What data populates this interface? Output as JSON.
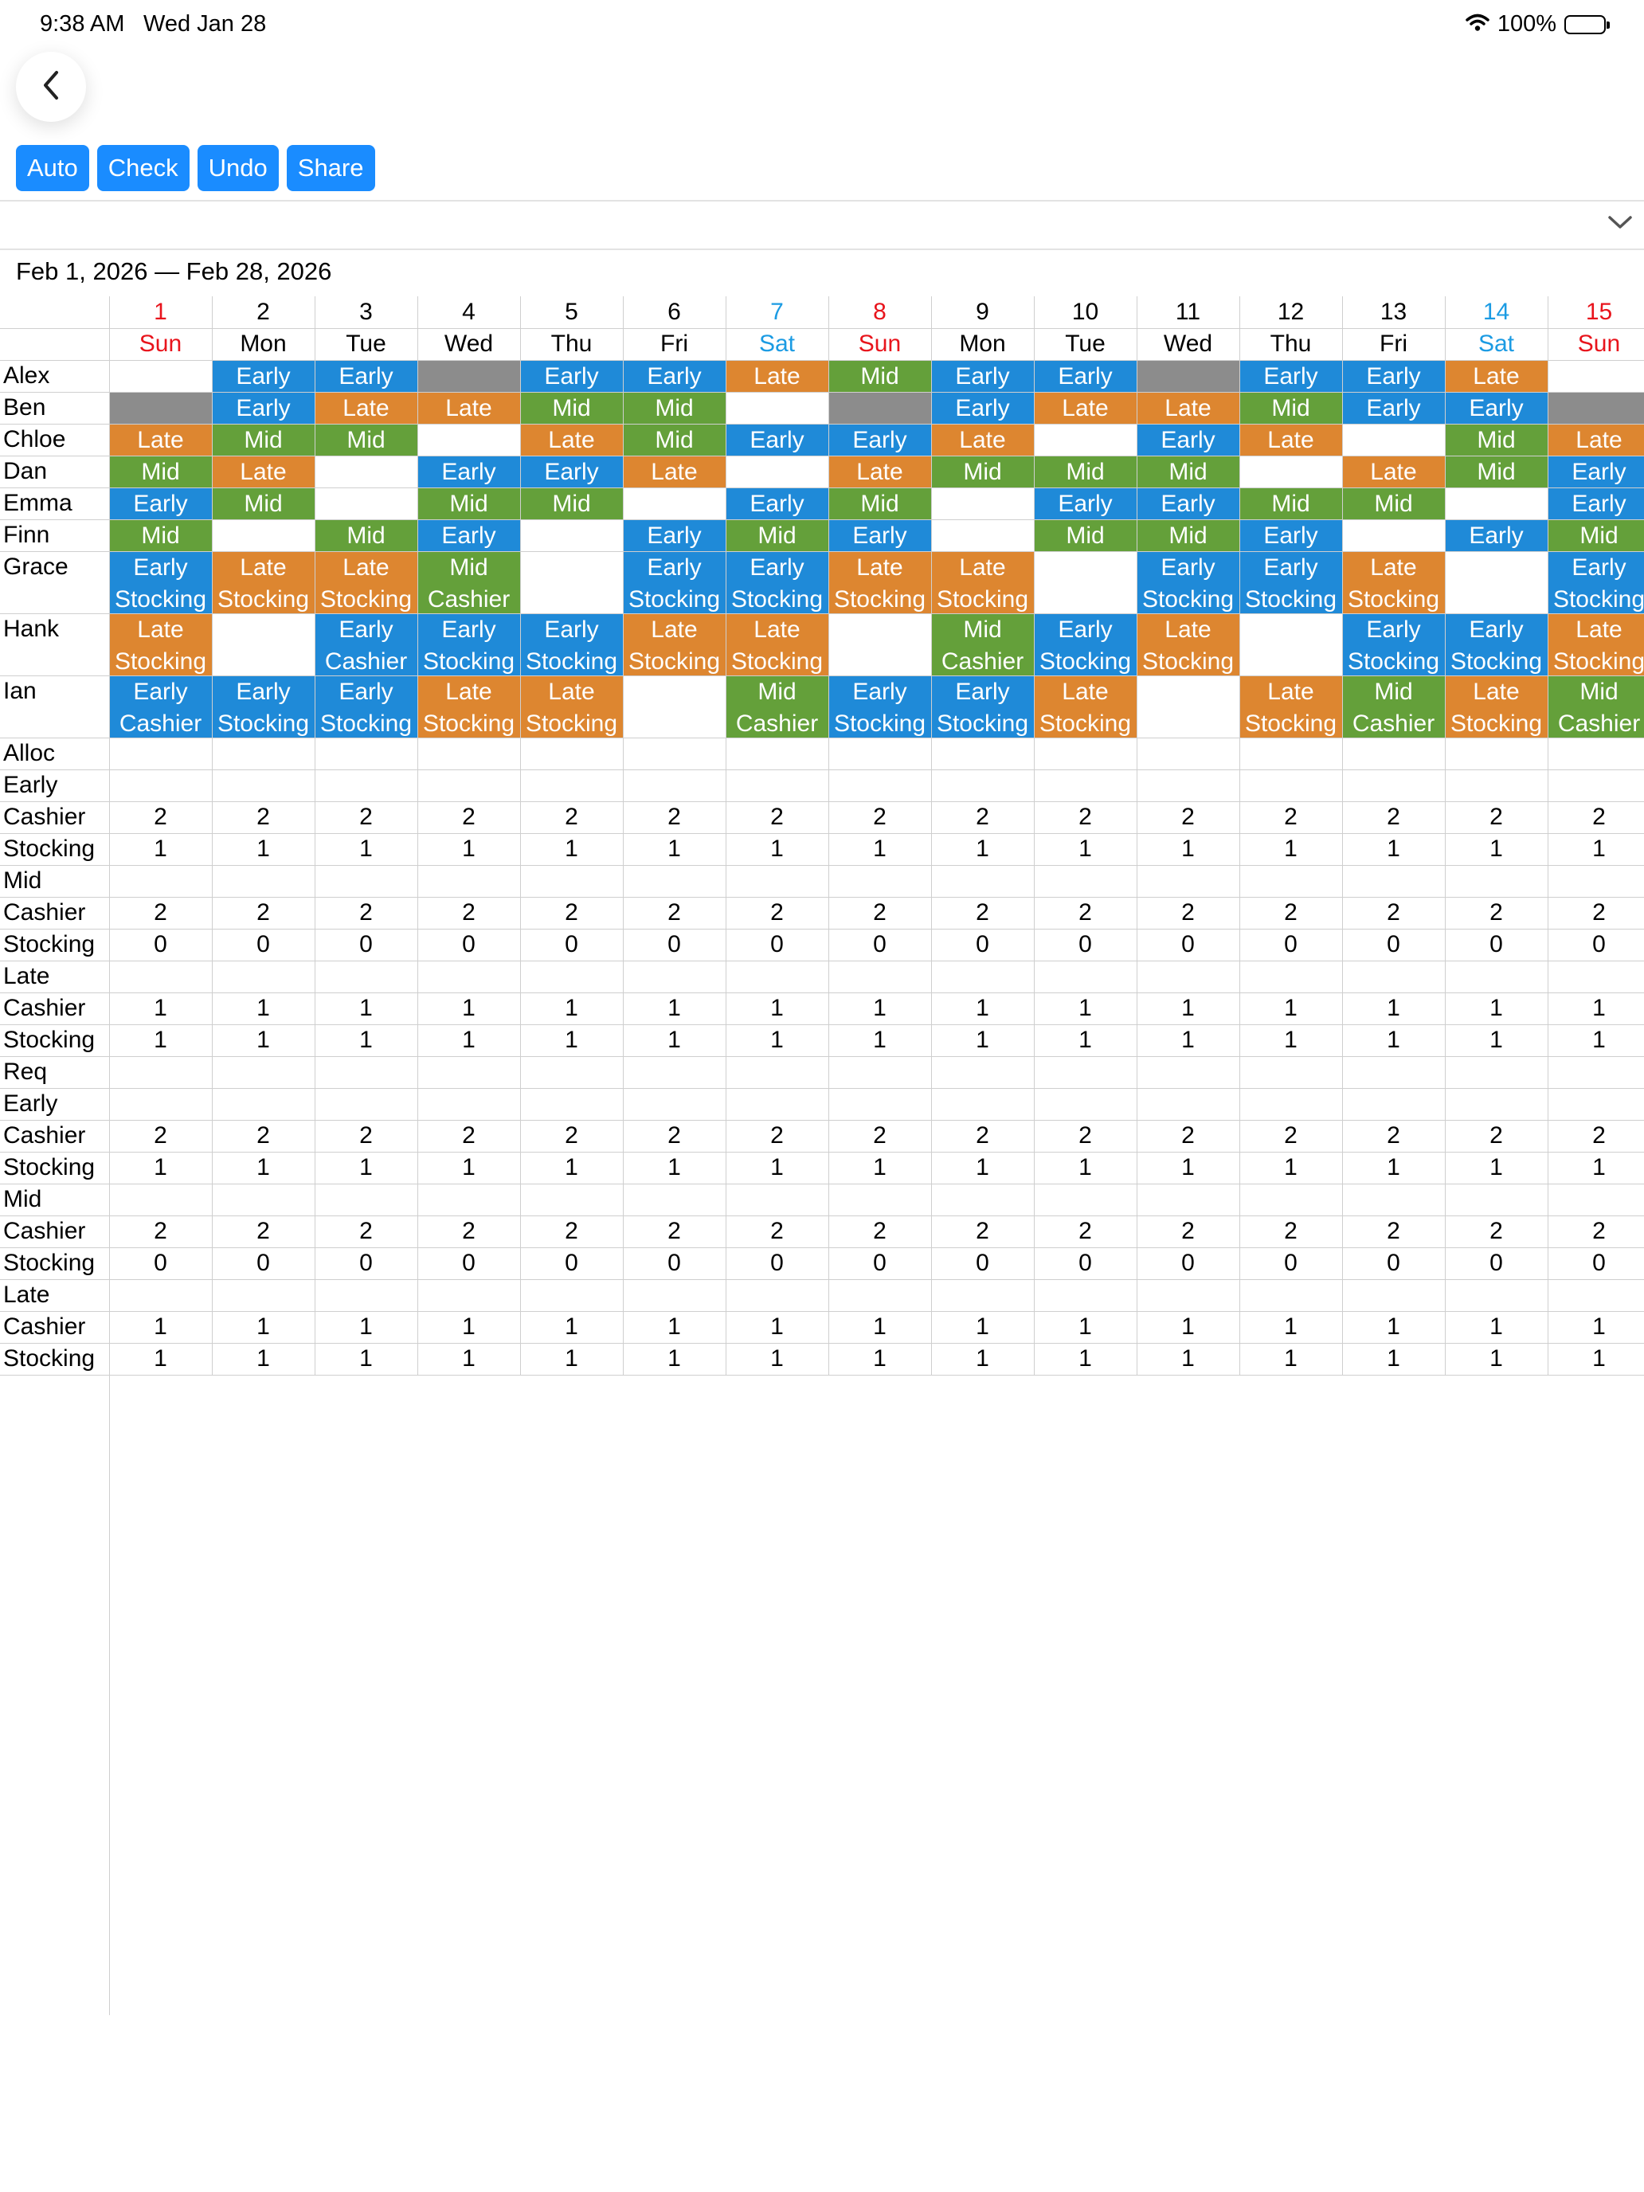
{
  "status_bar": {
    "time": "9:38 AM",
    "date": "Wed Jan 28",
    "battery": "100%"
  },
  "toolbar": {
    "auto": "Auto",
    "check": "Check",
    "undo": "Undo",
    "share": "Share"
  },
  "date_range": "Feb 1, 2026 — Feb 28, 2026",
  "colors": {
    "Early": "#1f8ad8",
    "Mid": "#64a03a",
    "Late": "#dd8630",
    "Off": "#8c8c8c",
    "sunday": "#e8141c",
    "saturday": "#1b9be3",
    "button": "#1a8cff"
  },
  "days": [
    {
      "num": "1",
      "dow": "Sun"
    },
    {
      "num": "2",
      "dow": "Mon"
    },
    {
      "num": "3",
      "dow": "Tue"
    },
    {
      "num": "4",
      "dow": "Wed"
    },
    {
      "num": "5",
      "dow": "Thu"
    },
    {
      "num": "6",
      "dow": "Fri"
    },
    {
      "num": "7",
      "dow": "Sat"
    },
    {
      "num": "8",
      "dow": "Sun"
    },
    {
      "num": "9",
      "dow": "Mon"
    },
    {
      "num": "10",
      "dow": "Tue"
    },
    {
      "num": "11",
      "dow": "Wed"
    },
    {
      "num": "12",
      "dow": "Thu"
    },
    {
      "num": "13",
      "dow": "Fri"
    },
    {
      "num": "14",
      "dow": "Sat"
    },
    {
      "num": "15",
      "dow": "Sun"
    }
  ],
  "staff": [
    {
      "name": "Alex",
      "cells": [
        "",
        "Early",
        "Early",
        "OFF",
        "Early",
        "Early",
        "Late",
        "Mid",
        "Early",
        "Early",
        "OFF",
        "Early",
        "Early",
        "Late",
        ""
      ]
    },
    {
      "name": "Ben",
      "cells": [
        "OFF",
        "Early",
        "Late",
        "Late",
        "Mid",
        "Mid",
        "",
        "OFF",
        "Early",
        "Late",
        "Late",
        "Mid",
        "Early",
        "Early",
        "OFF"
      ]
    },
    {
      "name": "Chloe",
      "cells": [
        "Late",
        "Mid",
        "Mid",
        "",
        "Late",
        "Mid",
        "Early",
        "Early",
        "Late",
        "",
        "Early",
        "Late",
        "",
        "Mid",
        "Late"
      ]
    },
    {
      "name": "Dan",
      "cells": [
        "Mid",
        "Late",
        "",
        "Early",
        "Early",
        "Late",
        "",
        "Late",
        "Mid",
        "Mid",
        "Mid",
        "",
        "Late",
        "Mid",
        "Early"
      ]
    },
    {
      "name": "Emma",
      "cells": [
        "Early",
        "Mid",
        "",
        "Mid",
        "Mid",
        "",
        "Early",
        "Mid",
        "",
        "Early",
        "Early",
        "Mid",
        "Mid",
        "",
        "Early"
      ]
    },
    {
      "name": "Finn",
      "cells": [
        "Mid",
        "",
        "Mid",
        "Early",
        "",
        "Early",
        "Mid",
        "Early",
        "",
        "Mid",
        "Mid",
        "Early",
        "",
        "Early",
        "Mid"
      ]
    },
    {
      "name": "Grace",
      "cells": [
        "Early|Stocking",
        "Late|Stocking",
        "Late|Stocking",
        "Mid|Cashier",
        "",
        "Early|Stocking",
        "Early|Stocking",
        "Late|Stocking",
        "Late|Stocking",
        "",
        "Early|Stocking",
        "Early|Stocking",
        "Late|Stocking",
        "",
        "Early|Stocking"
      ]
    },
    {
      "name": "Hank",
      "cells": [
        "Late|Stocking",
        "",
        "Early|Cashier",
        "Early|Stocking",
        "Early|Stocking",
        "Late|Stocking",
        "Late|Stocking",
        "",
        "Mid|Cashier",
        "Early|Stocking",
        "Late|Stocking",
        "",
        "Early|Stocking",
        "Early|Stocking",
        "Late|Stocking"
      ]
    },
    {
      "name": "Ian",
      "cells": [
        "Early|Cashier",
        "Early|Stocking",
        "Early|Stocking",
        "Late|Stocking",
        "Late|Stocking",
        "",
        "Mid|Cashier",
        "Early|Stocking",
        "Early|Stocking",
        "Late|Stocking",
        "",
        "Late|Stocking",
        "Mid|Cashier",
        "Late|Stocking",
        "Mid|Cashier"
      ]
    }
  ],
  "alloc_title": "Alloc",
  "req_title": "Req",
  "alloc": [
    {
      "label": "Early",
      "values": null
    },
    {
      "label": "Cashier",
      "values": [
        "2",
        "2",
        "2",
        "2",
        "2",
        "2",
        "2",
        "2",
        "2",
        "2",
        "2",
        "2",
        "2",
        "2",
        "2"
      ]
    },
    {
      "label": "Stocking",
      "values": [
        "1",
        "1",
        "1",
        "1",
        "1",
        "1",
        "1",
        "1",
        "1",
        "1",
        "1",
        "1",
        "1",
        "1",
        "1"
      ]
    },
    {
      "label": "Mid",
      "values": null
    },
    {
      "label": "Cashier",
      "values": [
        "2",
        "2",
        "2",
        "2",
        "2",
        "2",
        "2",
        "2",
        "2",
        "2",
        "2",
        "2",
        "2",
        "2",
        "2"
      ]
    },
    {
      "label": "Stocking",
      "values": [
        "0",
        "0",
        "0",
        "0",
        "0",
        "0",
        "0",
        "0",
        "0",
        "0",
        "0",
        "0",
        "0",
        "0",
        "0"
      ]
    },
    {
      "label": "Late",
      "values": null
    },
    {
      "label": "Cashier",
      "values": [
        "1",
        "1",
        "1",
        "1",
        "1",
        "1",
        "1",
        "1",
        "1",
        "1",
        "1",
        "1",
        "1",
        "1",
        "1"
      ]
    },
    {
      "label": "Stocking",
      "values": [
        "1",
        "1",
        "1",
        "1",
        "1",
        "1",
        "1",
        "1",
        "1",
        "1",
        "1",
        "1",
        "1",
        "1",
        "1"
      ]
    }
  ],
  "req": [
    {
      "label": "Early",
      "values": null
    },
    {
      "label": "Cashier",
      "values": [
        "2",
        "2",
        "2",
        "2",
        "2",
        "2",
        "2",
        "2",
        "2",
        "2",
        "2",
        "2",
        "2",
        "2",
        "2"
      ]
    },
    {
      "label": "Stocking",
      "values": [
        "1",
        "1",
        "1",
        "1",
        "1",
        "1",
        "1",
        "1",
        "1",
        "1",
        "1",
        "1",
        "1",
        "1",
        "1"
      ]
    },
    {
      "label": "Mid",
      "values": null
    },
    {
      "label": "Cashier",
      "values": [
        "2",
        "2",
        "2",
        "2",
        "2",
        "2",
        "2",
        "2",
        "2",
        "2",
        "2",
        "2",
        "2",
        "2",
        "2"
      ]
    },
    {
      "label": "Stocking",
      "values": [
        "0",
        "0",
        "0",
        "0",
        "0",
        "0",
        "0",
        "0",
        "0",
        "0",
        "0",
        "0",
        "0",
        "0",
        "0"
      ]
    },
    {
      "label": "Late",
      "values": null
    },
    {
      "label": "Cashier",
      "values": [
        "1",
        "1",
        "1",
        "1",
        "1",
        "1",
        "1",
        "1",
        "1",
        "1",
        "1",
        "1",
        "1",
        "1",
        "1"
      ]
    },
    {
      "label": "Stocking",
      "values": [
        "1",
        "1",
        "1",
        "1",
        "1",
        "1",
        "1",
        "1",
        "1",
        "1",
        "1",
        "1",
        "1",
        "1",
        "1"
      ]
    }
  ]
}
